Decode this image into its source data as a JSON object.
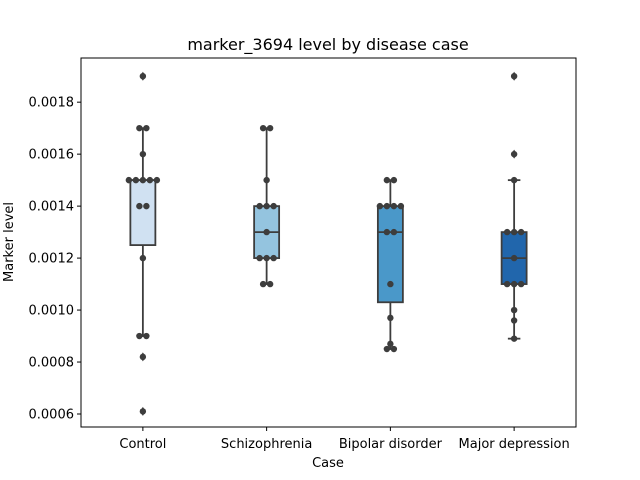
{
  "chart_data": {
    "type": "box",
    "title": "marker_3694 level by disease case",
    "xlabel": "Case",
    "ylabel": "Marker level",
    "ylim": [
      0.00055,
      0.00197
    ],
    "yticks": [
      "0.0006",
      "0.0008",
      "0.0010",
      "0.0012",
      "0.0014",
      "0.0016",
      "0.0018"
    ],
    "categories": [
      "Control",
      "Schizophrenia",
      "Bipolar disorder",
      "Major depression"
    ],
    "colors": [
      "#d0e1f2",
      "#94c4df",
      "#4a98c9",
      "#2166ac"
    ],
    "grid": false,
    "boxes": [
      {
        "q1": 0.00125,
        "median": 0.0015,
        "q3": 0.0015,
        "whisker_low": 0.0009,
        "whisker_high": 0.0017,
        "outliers": [
          0.0019,
          0.00082,
          0.00061
        ]
      },
      {
        "q1": 0.0012,
        "median": 0.0013,
        "q3": 0.0014,
        "whisker_low": 0.0011,
        "whisker_high": 0.0017,
        "outliers": []
      },
      {
        "q1": 0.00103,
        "median": 0.0013,
        "q3": 0.0014,
        "whisker_low": 0.00085,
        "whisker_high": 0.0015,
        "outliers": []
      },
      {
        "q1": 0.0011,
        "median": 0.0012,
        "q3": 0.0013,
        "whisker_low": 0.00089,
        "whisker_high": 0.0015,
        "outliers": [
          0.0019,
          0.0016
        ]
      }
    ],
    "points": [
      [
        0.0019,
        0.0017,
        0.0017,
        0.0016,
        0.0015,
        0.0015,
        0.0015,
        0.0015,
        0.0015,
        0.0014,
        0.0014,
        0.0012,
        0.0009,
        0.0009,
        0.00082,
        0.00061
      ],
      [
        0.0017,
        0.0017,
        0.0015,
        0.0014,
        0.0014,
        0.0014,
        0.0013,
        0.0012,
        0.0012,
        0.0012,
        0.0011,
        0.0011
      ],
      [
        0.0015,
        0.0015,
        0.0014,
        0.0014,
        0.0014,
        0.0014,
        0.0013,
        0.0013,
        0.0011,
        0.00097,
        0.00087,
        0.00085,
        0.00085
      ],
      [
        0.0019,
        0.0016,
        0.0015,
        0.0013,
        0.0013,
        0.0013,
        0.0012,
        0.0011,
        0.0011,
        0.0011,
        0.001,
        0.00096,
        0.00089
      ]
    ]
  }
}
